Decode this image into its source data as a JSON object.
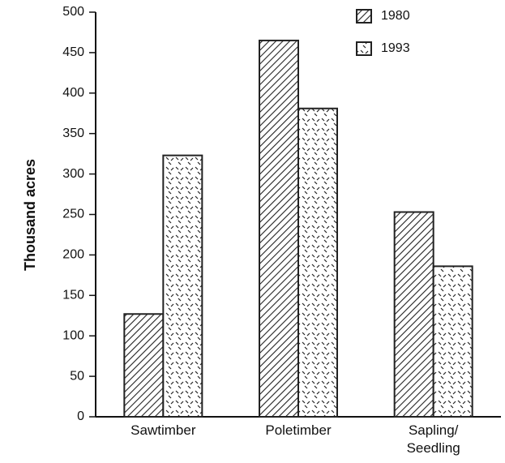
{
  "chart_data": {
    "type": "bar",
    "y_label": "Thousand acres",
    "categories": [
      "Sawtimber",
      "Poletimber",
      "Sapling/\nSeedling"
    ],
    "series": [
      {
        "name": "1980",
        "color": "#222222",
        "values": [
          127,
          465,
          253
        ]
      },
      {
        "name": "1993",
        "color": "#222222",
        "values": [
          323,
          381,
          186
        ]
      }
    ],
    "ylim": [
      0,
      500
    ],
    "yticks": [
      0,
      50,
      100,
      150,
      200,
      250,
      300,
      350,
      400,
      450,
      500
    ],
    "grid": false,
    "legend": "upper right"
  }
}
